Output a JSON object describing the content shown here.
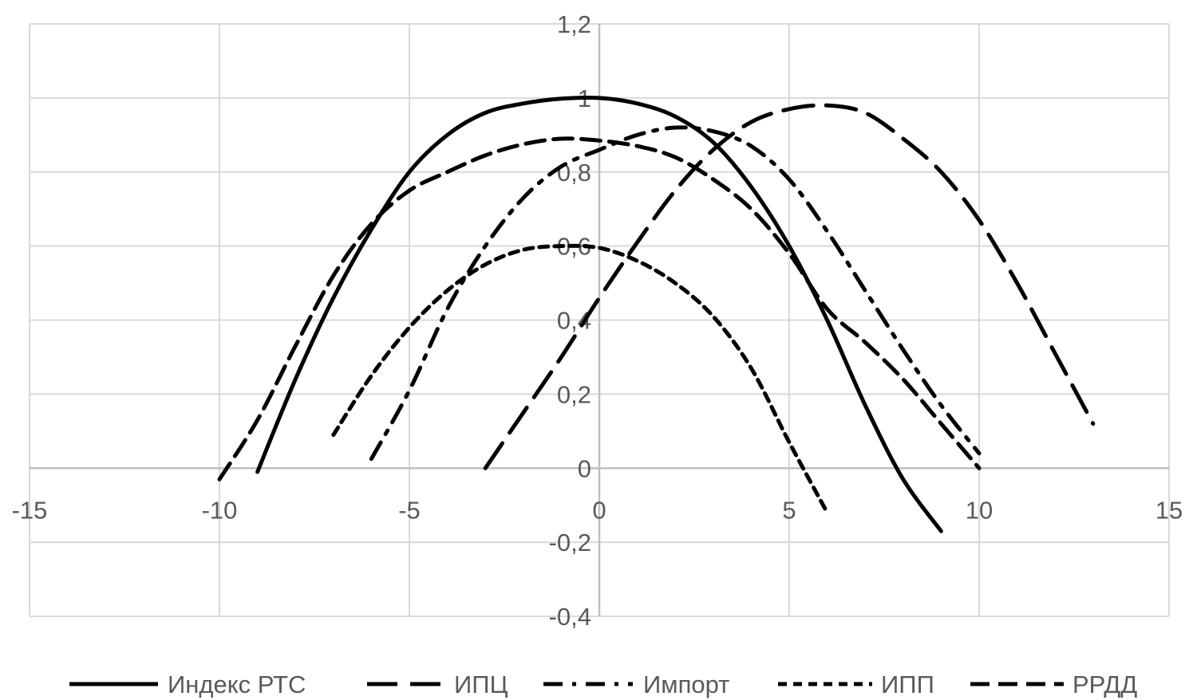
{
  "chart_data": {
    "type": "line",
    "title": "",
    "xlabel": "",
    "ylabel": "",
    "xlim": [
      -15,
      15
    ],
    "ylim": [
      -0.4,
      1.2
    ],
    "x_ticks": [
      "-15",
      "-10",
      "-5",
      "0",
      "5",
      "10",
      "15"
    ],
    "y_ticks": [
      "1,2",
      "1",
      "0,8",
      "0,6",
      "0,4",
      "0,2",
      "0",
      "-0,2",
      "-0,4"
    ],
    "grid": true,
    "legend_position": "bottom",
    "series": [
      {
        "name": "Индекс РТС",
        "dash": "solid",
        "color": "#000000",
        "points": [
          [
            -9,
            -0.01
          ],
          [
            -8,
            0.24
          ],
          [
            -7,
            0.46
          ],
          [
            -6,
            0.645
          ],
          [
            -5,
            0.8
          ],
          [
            -4,
            0.9
          ],
          [
            -3,
            0.96
          ],
          [
            -2,
            0.985
          ],
          [
            -1,
            0.998
          ],
          [
            0,
            1.0
          ],
          [
            1,
            0.985
          ],
          [
            2,
            0.95
          ],
          [
            3,
            0.88
          ],
          [
            4,
            0.76
          ],
          [
            5,
            0.6
          ],
          [
            6,
            0.4
          ],
          [
            7,
            0.17
          ],
          [
            8,
            -0.03
          ],
          [
            9,
            -0.17
          ]
        ]
      },
      {
        "name": "ИПЦ",
        "dash": "long-dash",
        "color": "#000000",
        "points": [
          [
            -3,
            0.0
          ],
          [
            -2,
            0.15
          ],
          [
            -1,
            0.3
          ],
          [
            0,
            0.46
          ],
          [
            1,
            0.61
          ],
          [
            2,
            0.75
          ],
          [
            3,
            0.86
          ],
          [
            4,
            0.935
          ],
          [
            5,
            0.97
          ],
          [
            6,
            0.98
          ],
          [
            7,
            0.96
          ],
          [
            8,
            0.89
          ],
          [
            9,
            0.8
          ],
          [
            10,
            0.67
          ],
          [
            11,
            0.5
          ],
          [
            12,
            0.31
          ],
          [
            13,
            0.12
          ]
        ]
      },
      {
        "name": "Импорт",
        "dash": "dash-dot",
        "color": "#000000",
        "points": [
          [
            -6,
            0.025
          ],
          [
            -5,
            0.21
          ],
          [
            -4,
            0.43
          ],
          [
            -3,
            0.6
          ],
          [
            -2,
            0.73
          ],
          [
            -1,
            0.815
          ],
          [
            0,
            0.86
          ],
          [
            1,
            0.9
          ],
          [
            2,
            0.92
          ],
          [
            3,
            0.91
          ],
          [
            4,
            0.87
          ],
          [
            5,
            0.78
          ],
          [
            6,
            0.64
          ],
          [
            7,
            0.48
          ],
          [
            8,
            0.32
          ],
          [
            9,
            0.17
          ],
          [
            10,
            0.04
          ]
        ]
      },
      {
        "name": "ИПП",
        "dash": "short-dash",
        "color": "#000000",
        "points": [
          [
            -7,
            0.09
          ],
          [
            -6,
            0.25
          ],
          [
            -5,
            0.38
          ],
          [
            -4,
            0.48
          ],
          [
            -3,
            0.55
          ],
          [
            -2,
            0.59
          ],
          [
            -1,
            0.6
          ],
          [
            0,
            0.595
          ],
          [
            1,
            0.56
          ],
          [
            2,
            0.5
          ],
          [
            3,
            0.41
          ],
          [
            4,
            0.27
          ],
          [
            5,
            0.07
          ],
          [
            6,
            -0.12
          ]
        ]
      },
      {
        "name": "РРДД",
        "dash": "medium-dash",
        "color": "#000000",
        "points": [
          [
            -10,
            -0.03
          ],
          [
            -9,
            0.13
          ],
          [
            -8,
            0.33
          ],
          [
            -7,
            0.52
          ],
          [
            -6,
            0.66
          ],
          [
            -5,
            0.75
          ],
          [
            -4,
            0.8
          ],
          [
            -3,
            0.845
          ],
          [
            -2,
            0.875
          ],
          [
            -1,
            0.89
          ],
          [
            0,
            0.885
          ],
          [
            1,
            0.87
          ],
          [
            2,
            0.84
          ],
          [
            3,
            0.78
          ],
          [
            4,
            0.7
          ],
          [
            5,
            0.58
          ],
          [
            6,
            0.43
          ],
          [
            7,
            0.34
          ],
          [
            8,
            0.24
          ],
          [
            9,
            0.12
          ],
          [
            10,
            0.0
          ]
        ]
      }
    ]
  }
}
